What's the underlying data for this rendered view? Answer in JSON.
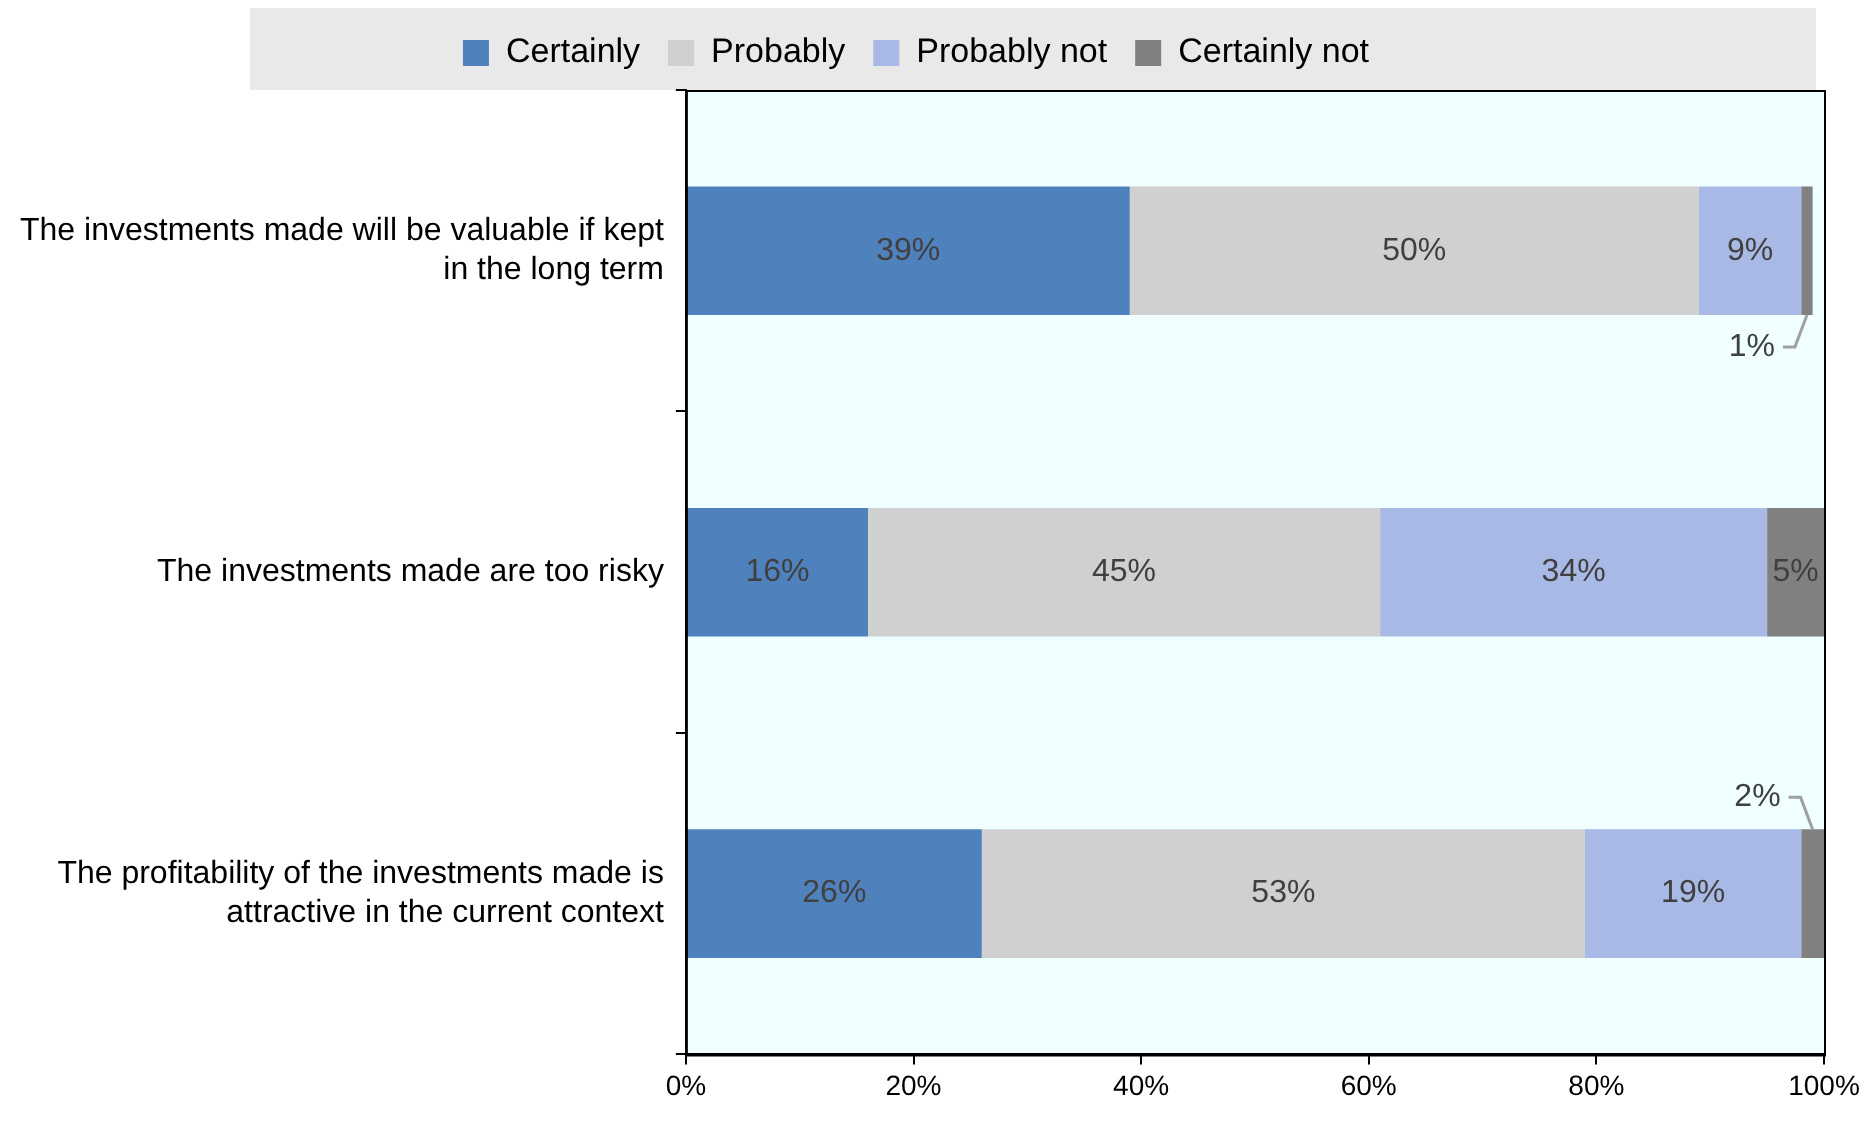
{
  "chart_data": {
    "type": "bar",
    "orientation": "horizontal",
    "stacked": true,
    "categories": [
      "The investments made will be valuable if kept in the long term",
      "The investments made are too risky",
      "The profitability of the investments made is attractive in the current context"
    ],
    "series": [
      {
        "name": "Certainly",
        "color": "#4f81bd",
        "values": [
          39,
          16,
          26
        ],
        "value_labels": [
          "39%",
          "16%",
          "26%"
        ]
      },
      {
        "name": "Probably",
        "color": "#d0d0d0",
        "values": [
          50,
          45,
          53
        ],
        "value_labels": [
          "50%",
          "45%",
          "53%"
        ]
      },
      {
        "name": "Probably not",
        "color": "#a9b9e6",
        "values": [
          9,
          34,
          19
        ],
        "value_labels": [
          "9%",
          "34%",
          "19%"
        ]
      },
      {
        "name": "Certainly not",
        "color": "#808080",
        "values": [
          1,
          5,
          2
        ],
        "value_labels": [
          "1%",
          "5%",
          "2%"
        ]
      }
    ],
    "xlim": [
      0,
      100
    ],
    "xticks": [
      {
        "value": 0,
        "label": "0%"
      },
      {
        "value": 20,
        "label": "20%"
      },
      {
        "value": 40,
        "label": "40%"
      },
      {
        "value": 60,
        "label": "60%"
      },
      {
        "value": 80,
        "label": "80%"
      },
      {
        "value": 100,
        "label": "100%"
      }
    ],
    "grid": false,
    "legend": "top"
  }
}
